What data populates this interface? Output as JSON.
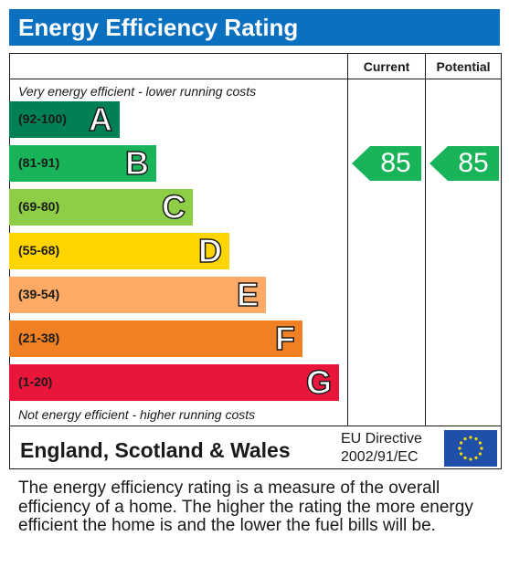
{
  "header": {
    "title": "Energy Efficiency Rating"
  },
  "columns": {
    "current": "Current",
    "potential": "Potential"
  },
  "notes": {
    "top": "Very energy efficient - lower running costs",
    "bottom": "Not energy efficient - higher running costs"
  },
  "chart_data": {
    "type": "bar",
    "categories": [
      "A",
      "B",
      "C",
      "D",
      "E",
      "F",
      "G"
    ],
    "ranges": [
      "(92-100)",
      "(81-91)",
      "(69-80)",
      "(55-68)",
      "(39-54)",
      "(21-38)",
      "(1-20)"
    ],
    "colors": [
      "#008054",
      "#19b459",
      "#8dce46",
      "#ffd500",
      "#fcaa65",
      "#ef8023",
      "#e9153b"
    ],
    "current": {
      "value": 85,
      "band": "B"
    },
    "potential": {
      "value": 85,
      "band": "B"
    },
    "marker_color": "#19b459"
  },
  "footer": {
    "region": "England, Scotland & Wales",
    "directive_line1": "EU Directive",
    "directive_line2": "2002/91/EC"
  },
  "description": "The energy efficiency rating is a measure of the overall efficiency of a home. The higher the rating the more energy efficient the home is and the lower the fuel bills will be."
}
